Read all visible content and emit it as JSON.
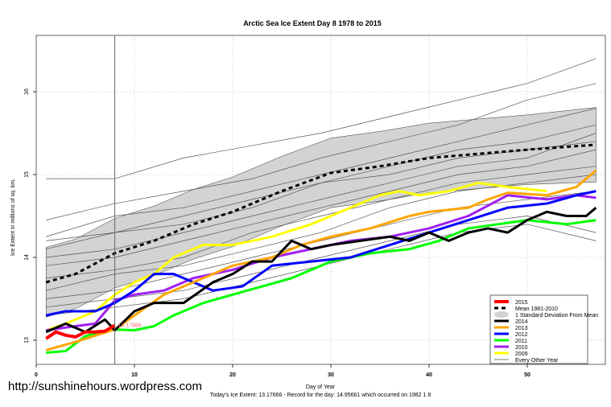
{
  "chart_data": {
    "type": "line",
    "title": "Arctic Sea Ice Extent Day 8 1978 to 2015",
    "xlabel": "Day of Year",
    "ylabel": "Ice Extent in millions of sq. km.",
    "subtitle": "Today's Ice Extent: 13.17666  - Record for the day: 14.95661 which occurred on 1982 1 8",
    "xlim": [
      0,
      58
    ],
    "ylim": [
      12.8,
      15.9
    ],
    "xticks": [
      0,
      10,
      20,
      30,
      40,
      50
    ],
    "yticks": [
      13,
      14,
      15,
      16
    ],
    "grid": true,
    "legend_position": "bottom-right",
    "current_day": 8,
    "current_label": "13.17666",
    "mean": {
      "name": "Mean 1981-2010",
      "x": [
        1,
        4,
        8,
        12,
        16,
        20,
        25,
        30,
        35,
        40,
        45,
        50,
        57
      ],
      "y": [
        13.7,
        13.8,
        14.05,
        14.2,
        14.4,
        14.55,
        14.8,
        15.02,
        15.1,
        15.2,
        15.25,
        15.3,
        15.36
      ],
      "sd": [
        0.42,
        0.42,
        0.42,
        0.42,
        0.42,
        0.42,
        0.42,
        0.42,
        0.42,
        0.42,
        0.42,
        0.42,
        0.45
      ]
    },
    "series": [
      {
        "name": "2015",
        "color": "#ff0000",
        "width": 4,
        "x": [
          1,
          2,
          3,
          4,
          5,
          6,
          7,
          8
        ],
        "y": [
          13.02,
          13.1,
          13.06,
          13.04,
          13.1,
          13.1,
          13.11,
          13.18
        ]
      },
      {
        "name": "2014",
        "color": "#000000",
        "width": 3,
        "x": [
          1,
          3,
          5,
          7,
          8,
          10,
          12,
          15,
          18,
          20,
          22,
          24,
          26,
          28,
          30,
          33,
          36,
          38,
          40,
          42,
          44,
          46,
          48,
          50,
          52,
          54,
          56,
          57
        ],
        "y": [
          13.1,
          13.2,
          13.1,
          13.25,
          13.12,
          13.35,
          13.45,
          13.45,
          13.7,
          13.8,
          13.95,
          13.95,
          14.2,
          14.1,
          14.15,
          14.2,
          14.25,
          14.2,
          14.3,
          14.2,
          14.3,
          14.35,
          14.3,
          14.45,
          14.55,
          14.5,
          14.5,
          14.6
        ]
      },
      {
        "name": "2013",
        "color": "#ffa500",
        "width": 3,
        "x": [
          1,
          4,
          8,
          10,
          13,
          16,
          20,
          24,
          27,
          30,
          34,
          38,
          40,
          44,
          46,
          48,
          52,
          55,
          57
        ],
        "y": [
          12.88,
          12.98,
          13.13,
          13.3,
          13.55,
          13.7,
          13.9,
          14.0,
          14.15,
          14.25,
          14.35,
          14.5,
          14.55,
          14.6,
          14.7,
          14.78,
          14.75,
          14.85,
          15.05
        ]
      },
      {
        "name": "2012",
        "color": "#0000ff",
        "width": 3,
        "x": [
          1,
          3,
          6,
          8,
          10,
          12,
          14,
          16,
          18,
          21,
          24,
          28,
          32,
          36,
          40,
          44,
          48,
          52,
          55,
          57
        ],
        "y": [
          13.3,
          13.35,
          13.35,
          13.45,
          13.6,
          13.8,
          13.8,
          13.7,
          13.6,
          13.65,
          13.9,
          13.95,
          14.0,
          14.15,
          14.3,
          14.45,
          14.6,
          14.65,
          14.75,
          14.8
        ]
      },
      {
        "name": "2011",
        "color": "#00ff00",
        "width": 3,
        "x": [
          1,
          3,
          5,
          8,
          10,
          12,
          14,
          17,
          20,
          23,
          26,
          30,
          34,
          38,
          41,
          44,
          47,
          50,
          54,
          57
        ],
        "y": [
          12.85,
          12.87,
          13.05,
          13.13,
          13.12,
          13.17,
          13.3,
          13.45,
          13.55,
          13.65,
          13.75,
          13.95,
          14.05,
          14.1,
          14.2,
          14.35,
          14.4,
          14.45,
          14.4,
          14.45
        ]
      },
      {
        "name": "2010",
        "color": "#a020f0",
        "width": 3,
        "x": [
          1,
          4,
          6,
          8,
          10,
          13,
          16,
          20,
          24,
          28,
          32,
          36,
          40,
          44,
          48,
          52,
          55,
          57
        ],
        "y": [
          13.12,
          13.17,
          13.2,
          13.48,
          13.55,
          13.6,
          13.75,
          13.85,
          14.0,
          14.1,
          14.2,
          14.25,
          14.35,
          14.5,
          14.75,
          14.7,
          14.75,
          14.72
        ]
      },
      {
        "name": "2009",
        "color": "#ffff00",
        "width": 3,
        "x": [
          1,
          3,
          6,
          8,
          10,
          12,
          14,
          17,
          20,
          24,
          28,
          32,
          35,
          37,
          39,
          42,
          45,
          48,
          52
        ],
        "y": [
          13.12,
          13.2,
          13.35,
          13.55,
          13.7,
          13.8,
          14.0,
          14.15,
          14.15,
          14.25,
          14.4,
          14.6,
          14.75,
          14.8,
          14.75,
          14.8,
          14.9,
          14.85,
          14.8
        ]
      }
    ],
    "other_years": {
      "name": "Every Other Year",
      "color": "#555555",
      "x": [
        1,
        8,
        15,
        22,
        29,
        36,
        43,
        50,
        57
      ],
      "y": [
        [
          14.95,
          14.95,
          15.2,
          15.35,
          15.5,
          15.7,
          15.9,
          16.1,
          16.4
        ],
        [
          14.45,
          14.65,
          14.8,
          14.95,
          15.2,
          15.4,
          15.6,
          15.9,
          16.1
        ],
        [
          14.25,
          14.5,
          14.6,
          14.8,
          15.0,
          15.2,
          15.4,
          15.6,
          15.8
        ],
        [
          14.2,
          14.3,
          14.4,
          14.6,
          14.9,
          15.1,
          15.3,
          15.4,
          15.6
        ],
        [
          14.1,
          14.3,
          14.5,
          14.7,
          14.9,
          15.0,
          15.2,
          15.3,
          15.4
        ],
        [
          14.0,
          14.1,
          14.3,
          14.5,
          14.7,
          14.9,
          15.1,
          15.2,
          15.5
        ],
        [
          13.9,
          14.0,
          14.2,
          14.4,
          14.6,
          14.8,
          15.0,
          15.1,
          15.3
        ],
        [
          13.75,
          13.85,
          14.0,
          14.3,
          14.5,
          14.7,
          14.9,
          15.0,
          15.1
        ],
        [
          13.6,
          13.8,
          13.9,
          14.1,
          14.3,
          14.6,
          14.8,
          14.9,
          15.0
        ],
        [
          13.5,
          13.6,
          13.8,
          14.0,
          14.2,
          14.4,
          14.6,
          14.7,
          14.8
        ],
        [
          13.4,
          13.5,
          13.6,
          13.8,
          14.0,
          14.2,
          14.4,
          14.5,
          14.3
        ],
        [
          13.3,
          13.4,
          13.5,
          13.7,
          13.9,
          14.1,
          14.3,
          14.4,
          14.2
        ]
      ]
    }
  },
  "legend": {
    "sd_label": "1 Standard Deviation From Mean"
  },
  "watermark": "http://sunshinehours.wordpress.com"
}
